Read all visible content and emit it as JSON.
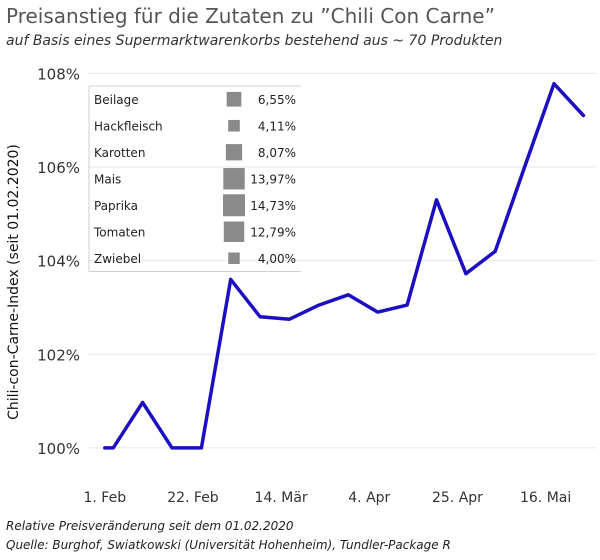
{
  "header": {
    "title": "Preisanstieg für die Zutaten zu ”Chili Con Carne”",
    "subtitle": "auf Basis eines Supermarktwarenkorbs bestehend aus ~ 70 Produkten"
  },
  "footer": {
    "note": "Relative Preisveränderung seit dem 01.02.2020",
    "source": "Quelle: Burghof, Swiatkowski (Universität Hohenheim), Tundler-Package R"
  },
  "colors": {
    "line": "#1c0fc2",
    "grid": "#e6e6e6",
    "box": "#8a8a8a"
  },
  "chart_data": {
    "type": "line",
    "ylabel": "Chili-con-Carne-Index (seit 01.02.2020)",
    "ylim": [
      99.4,
      108.2
    ],
    "yticks": [
      100,
      102,
      104,
      106,
      108
    ],
    "ytick_labels": [
      "100%",
      "102%",
      "104%",
      "106%",
      "108%"
    ],
    "xlim": [
      "2020-01-28",
      "2020-05-28"
    ],
    "xticks": [
      "2020-02-01",
      "2020-02-22",
      "2020-03-14",
      "2020-04-04",
      "2020-04-25",
      "2020-05-16"
    ],
    "xtick_labels": [
      "1. Feb",
      "22. Feb",
      "14. Mär",
      "4. Apr",
      "25. Apr",
      "16. Mai"
    ],
    "grid": "horizontal",
    "series": [
      {
        "x": [
          "2020-02-01",
          "2020-02-03",
          "2020-02-10",
          "2020-02-17",
          "2020-02-24",
          "2020-03-02",
          "2020-03-09",
          "2020-03-16",
          "2020-03-23",
          "2020-03-30",
          "2020-04-06",
          "2020-04-13",
          "2020-04-20",
          "2020-04-27",
          "2020-05-04",
          "2020-05-11",
          "2020-05-18",
          "2020-05-25"
        ],
        "values": [
          100.0,
          100.0,
          100.97,
          100.0,
          100.0,
          103.6,
          102.8,
          102.75,
          103.05,
          103.27,
          102.9,
          103.05,
          105.3,
          103.72,
          104.2,
          106.0,
          107.78,
          107.1
        ]
      }
    ],
    "legend": {
      "placement": "top-left",
      "items": [
        {
          "label": "Beilage",
          "value": "6,55%",
          "share": 6.55
        },
        {
          "label": "Hackfleisch",
          "value": "4,11%",
          "share": 4.11
        },
        {
          "label": "Karotten",
          "value": "8,07%",
          "share": 8.07
        },
        {
          "label": "Mais",
          "value": "13,97%",
          "share": 13.97
        },
        {
          "label": "Paprika",
          "value": "14,73%",
          "share": 14.73
        },
        {
          "label": "Tomaten",
          "value": "12,79%",
          "share": 12.79
        },
        {
          "label": "Zwiebel",
          "value": "4,00%",
          "share": 4.0
        }
      ]
    }
  }
}
